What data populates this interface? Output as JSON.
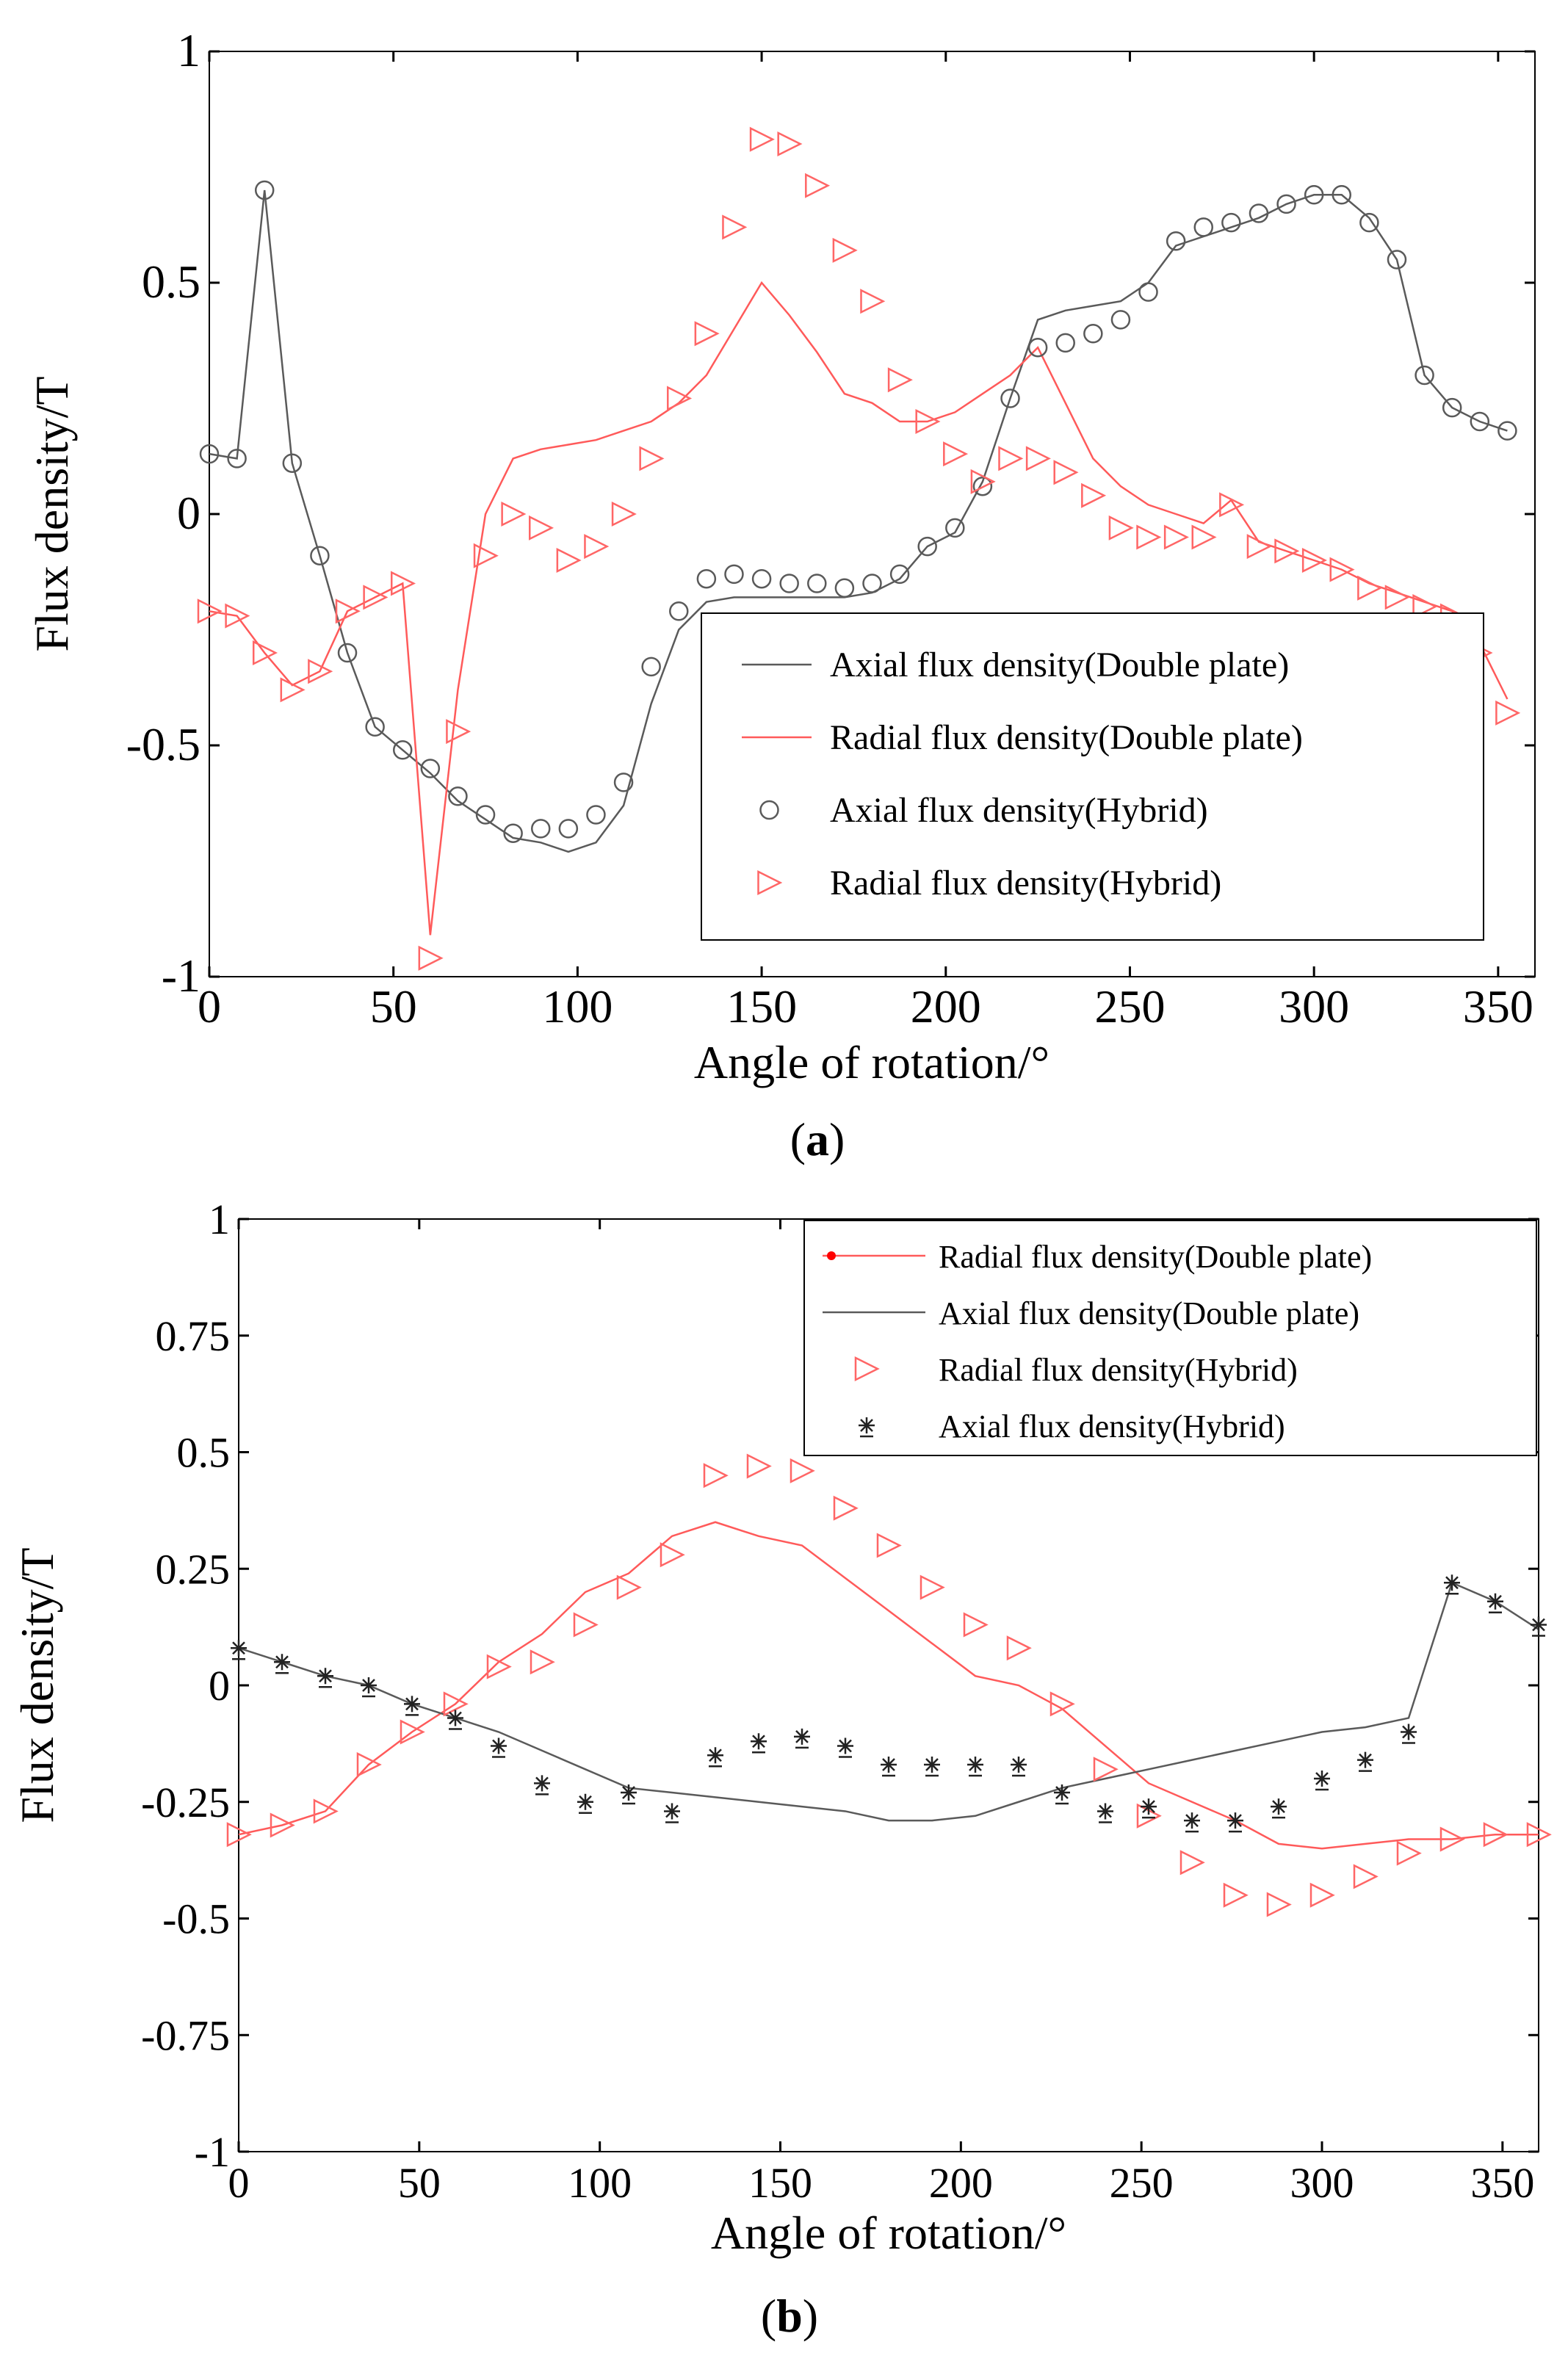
{
  "colors": {
    "axial": "#5a5a5a",
    "radial": "#ff5a5a",
    "radial_marker": "#ff6666",
    "radial_dot": "#ff0000",
    "star": "#222222",
    "frame": "#000000"
  },
  "chart_data": [
    {
      "panel_label": "a",
      "type": "line",
      "xlabel": "Angle of rotation/°",
      "ylabel": "Flux density/T",
      "xlim": [
        0,
        360
      ],
      "ylim": [
        -1,
        1
      ],
      "xticks": [
        0,
        50,
        100,
        150,
        200,
        250,
        300,
        350
      ],
      "yticks": [
        -1,
        -0.5,
        0,
        0.5,
        1
      ],
      "ytick_labels": [
        "-1",
        "-0.5",
        "0",
        "0.5",
        "1"
      ],
      "legend_position": "bottom-right",
      "series": [
        {
          "name": "Axial flux density(Double plate)",
          "style": "line",
          "color_key": "axial",
          "x": [
            0,
            7.5,
            15,
            22.5,
            30,
            37.5,
            45,
            52.5,
            60,
            67.5,
            75,
            82.5,
            90,
            97.5,
            105,
            112.5,
            120,
            127.5,
            135,
            142.5,
            150,
            157.5,
            165,
            172.5,
            180,
            187.5,
            195,
            202.5,
            210,
            217.5,
            225,
            232.5,
            240,
            247.5,
            255,
            262.5,
            270,
            277.5,
            285,
            292.5,
            300,
            307.5,
            315,
            322.5,
            330,
            337.5,
            345,
            352.5
          ],
          "y": [
            0.13,
            0.12,
            0.7,
            0.11,
            -0.09,
            -0.3,
            -0.46,
            -0.51,
            -0.56,
            -0.62,
            -0.66,
            -0.7,
            -0.71,
            -0.73,
            -0.71,
            -0.63,
            -0.41,
            -0.25,
            -0.19,
            -0.18,
            -0.18,
            -0.18,
            -0.18,
            -0.18,
            -0.17,
            -0.14,
            -0.07,
            -0.04,
            0.07,
            0.25,
            0.42,
            0.44,
            0.45,
            0.46,
            0.5,
            0.58,
            0.6,
            0.62,
            0.64,
            0.67,
            0.69,
            0.69,
            0.64,
            0.55,
            0.3,
            0.23,
            0.2,
            0.18
          ]
        },
        {
          "name": "Radial flux density(Double plate)",
          "style": "line",
          "color_key": "radial",
          "x": [
            0,
            7.5,
            15,
            22.5,
            30,
            37.5,
            45,
            52.5,
            60,
            67.5,
            75,
            82.5,
            90,
            97.5,
            105,
            112.5,
            120,
            127.5,
            135,
            142.5,
            150,
            157.5,
            165,
            172.5,
            180,
            187.5,
            195,
            202.5,
            210,
            217.5,
            225,
            232.5,
            240,
            247.5,
            255,
            262.5,
            270,
            277.5,
            285,
            292.5,
            300,
            307.5,
            315,
            322.5,
            330,
            337.5,
            345,
            352.5
          ],
          "y": [
            -0.21,
            -0.22,
            -0.3,
            -0.37,
            -0.34,
            -0.21,
            -0.18,
            -0.15,
            -0.91,
            -0.38,
            0.0,
            0.12,
            0.14,
            0.15,
            0.16,
            0.18,
            0.2,
            0.24,
            0.3,
            0.4,
            0.5,
            0.43,
            0.35,
            0.26,
            0.24,
            0.2,
            0.2,
            0.22,
            0.26,
            0.3,
            0.36,
            0.24,
            0.12,
            0.06,
            0.02,
            0.0,
            -0.02,
            0.03,
            -0.06,
            -0.08,
            -0.1,
            -0.12,
            -0.15,
            -0.17,
            -0.19,
            -0.21,
            -0.28,
            -0.4
          ]
        },
        {
          "name": "Axial flux density(Hybrid)",
          "style": "marker-circle",
          "color_key": "axial",
          "x": [
            0,
            7.5,
            15,
            22.5,
            30,
            37.5,
            45,
            52.5,
            60,
            67.5,
            75,
            82.5,
            90,
            97.5,
            105,
            112.5,
            120,
            127.5,
            135,
            142.5,
            150,
            157.5,
            165,
            172.5,
            180,
            187.5,
            195,
            202.5,
            210,
            217.5,
            225,
            232.5,
            240,
            247.5,
            255,
            262.5,
            270,
            277.5,
            285,
            292.5,
            300,
            307.5,
            315,
            322.5,
            330,
            337.5,
            345,
            352.5
          ],
          "y": [
            0.13,
            0.12,
            0.7,
            0.11,
            -0.09,
            -0.3,
            -0.46,
            -0.51,
            -0.55,
            -0.61,
            -0.65,
            -0.69,
            -0.68,
            -0.68,
            -0.65,
            -0.58,
            -0.33,
            -0.21,
            -0.14,
            -0.13,
            -0.14,
            -0.15,
            -0.15,
            -0.16,
            -0.15,
            -0.13,
            -0.07,
            -0.03,
            0.06,
            0.25,
            0.36,
            0.37,
            0.39,
            0.42,
            0.48,
            0.59,
            0.62,
            0.63,
            0.65,
            0.67,
            0.69,
            0.69,
            0.63,
            0.55,
            0.3,
            0.23,
            0.2,
            0.18
          ]
        },
        {
          "name": "Radial flux density(Hybrid)",
          "style": "marker-triangle",
          "color_key": "radial_marker",
          "x": [
            0,
            7.5,
            15,
            22.5,
            30,
            37.5,
            45,
            52.5,
            60,
            67.5,
            75,
            82.5,
            90,
            97.5,
            105,
            112.5,
            120,
            127.5,
            135,
            142.5,
            150,
            157.5,
            165,
            172.5,
            180,
            187.5,
            195,
            202.5,
            210,
            217.5,
            225,
            232.5,
            240,
            247.5,
            255,
            262.5,
            270,
            277.5,
            285,
            292.5,
            300,
            307.5,
            315,
            322.5,
            330,
            337.5,
            345,
            352.5
          ],
          "y": [
            -0.21,
            -0.22,
            -0.3,
            -0.38,
            -0.34,
            -0.21,
            -0.18,
            -0.15,
            -0.96,
            -0.47,
            -0.09,
            0.0,
            -0.03,
            -0.1,
            -0.07,
            0.0,
            0.12,
            0.25,
            0.39,
            0.62,
            0.81,
            0.8,
            0.71,
            0.57,
            0.46,
            0.29,
            0.2,
            0.13,
            0.07,
            0.12,
            0.12,
            0.09,
            0.04,
            -0.03,
            -0.05,
            -0.05,
            -0.05,
            0.02,
            -0.07,
            -0.08,
            -0.1,
            -0.12,
            -0.16,
            -0.18,
            -0.2,
            -0.22,
            -0.3,
            -0.43
          ]
        }
      ]
    },
    {
      "panel_label": "b",
      "type": "line",
      "xlabel": "Angle of rotation/°",
      "ylabel": "Flux density/T",
      "xlim": [
        0,
        360
      ],
      "ylim": [
        -1,
        1
      ],
      "xticks": [
        0,
        50,
        100,
        150,
        200,
        250,
        300,
        350
      ],
      "yticks": [
        -1,
        -0.75,
        -0.5,
        -0.25,
        0,
        0.25,
        0.5,
        0.75,
        1
      ],
      "ytick_labels": [
        "-1",
        "-0.75",
        "-0.5",
        "-0.25",
        "0",
        "0.25",
        "0.5",
        "0.75",
        "1"
      ],
      "legend_position": "top-right",
      "series": [
        {
          "name": "Radial flux density(Double plate)",
          "style": "line-dot",
          "color_key": "radial",
          "x": [
            0,
            12,
            24,
            36,
            48,
            60,
            72,
            84,
            96,
            108,
            120,
            132,
            144,
            156,
            168,
            180,
            192,
            204,
            216,
            228,
            240,
            252,
            264,
            276,
            288,
            300,
            312,
            324,
            336,
            348,
            360
          ],
          "y": [
            -0.32,
            -0.3,
            -0.27,
            -0.17,
            -0.1,
            -0.04,
            0.05,
            0.11,
            0.2,
            0.24,
            0.32,
            0.35,
            0.32,
            0.3,
            0.23,
            0.16,
            0.09,
            0.02,
            0.0,
            -0.05,
            -0.13,
            -0.21,
            -0.25,
            -0.29,
            -0.34,
            -0.35,
            -0.34,
            -0.33,
            -0.33,
            -0.32,
            -0.32
          ]
        },
        {
          "name": "Axial flux density(Double plate)",
          "style": "line",
          "color_key": "axial",
          "x": [
            0,
            12,
            24,
            36,
            48,
            60,
            72,
            84,
            96,
            108,
            120,
            132,
            144,
            156,
            168,
            180,
            192,
            204,
            216,
            228,
            240,
            252,
            264,
            276,
            288,
            300,
            312,
            324,
            336,
            348,
            360
          ],
          "y": [
            0.08,
            0.05,
            0.02,
            0.0,
            -0.04,
            -0.07,
            -0.1,
            -0.14,
            -0.18,
            -0.22,
            -0.23,
            -0.24,
            -0.25,
            -0.26,
            -0.27,
            -0.29,
            -0.29,
            -0.28,
            -0.25,
            -0.22,
            -0.2,
            -0.18,
            -0.16,
            -0.14,
            -0.12,
            -0.1,
            -0.09,
            -0.07,
            0.22,
            0.18,
            0.12
          ]
        },
        {
          "name": "Radial flux density(Hybrid)",
          "style": "marker-triangle",
          "color_key": "radial_marker",
          "x": [
            0,
            12,
            24,
            36,
            48,
            60,
            72,
            84,
            96,
            108,
            120,
            132,
            144,
            156,
            168,
            180,
            192,
            204,
            216,
            228,
            240,
            252,
            264,
            276,
            288,
            300,
            312,
            324,
            336,
            348,
            360
          ],
          "y": [
            -0.32,
            -0.3,
            -0.27,
            -0.17,
            -0.1,
            -0.04,
            0.04,
            0.05,
            0.13,
            0.21,
            0.28,
            0.45,
            0.47,
            0.46,
            0.38,
            0.3,
            0.21,
            0.13,
            0.08,
            -0.04,
            -0.18,
            -0.28,
            -0.38,
            -0.45,
            -0.47,
            -0.45,
            -0.41,
            -0.36,
            -0.33,
            -0.32,
            -0.32
          ]
        },
        {
          "name": "Axial flux density(Hybrid)",
          "style": "marker-star",
          "color_key": "star",
          "x": [
            0,
            12,
            24,
            36,
            48,
            60,
            72,
            84,
            96,
            108,
            120,
            132,
            144,
            156,
            168,
            180,
            192,
            204,
            216,
            228,
            240,
            252,
            264,
            276,
            288,
            300,
            312,
            324,
            336,
            348,
            360
          ],
          "y": [
            0.08,
            0.05,
            0.02,
            0.0,
            -0.04,
            -0.07,
            -0.13,
            -0.21,
            -0.25,
            -0.23,
            -0.27,
            -0.15,
            -0.12,
            -0.11,
            -0.13,
            -0.17,
            -0.17,
            -0.17,
            -0.17,
            -0.23,
            -0.27,
            -0.26,
            -0.29,
            -0.29,
            -0.26,
            -0.2,
            -0.16,
            -0.1,
            0.22,
            0.18,
            0.13
          ]
        }
      ]
    }
  ]
}
